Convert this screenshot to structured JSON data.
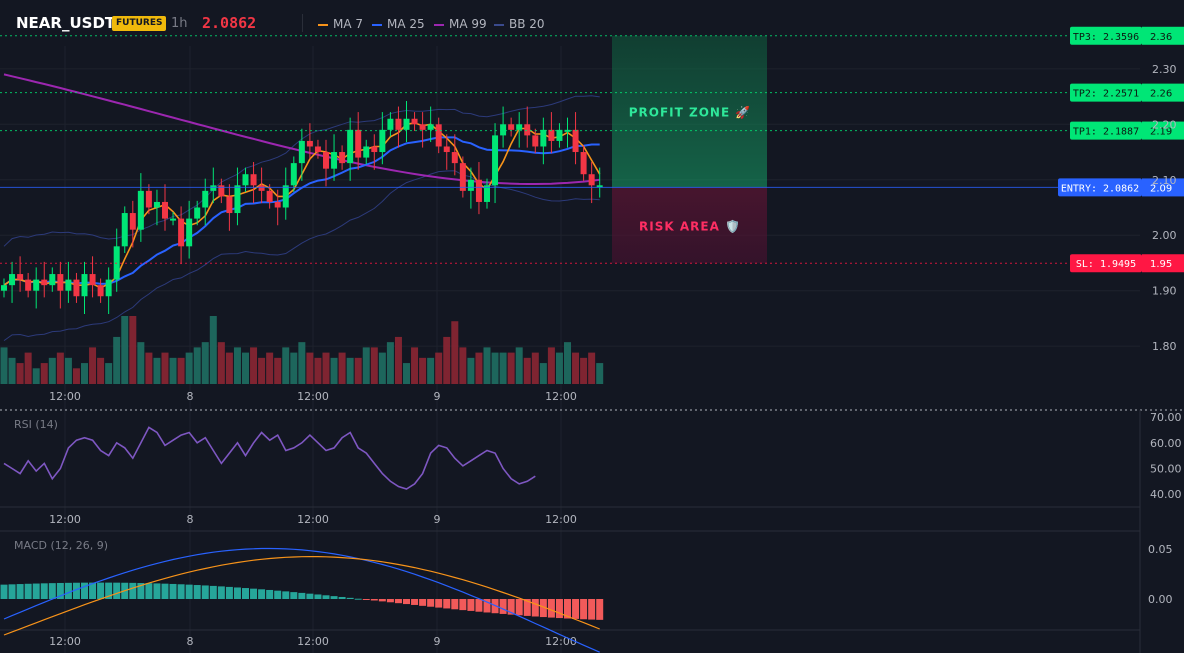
{
  "header": {
    "symbol": "NEAR_USDT",
    "badge": "FUTURES",
    "timeframe": "1h",
    "last_price": "2.0862",
    "legend": [
      {
        "label": "MA 7",
        "color": "#f7931a"
      },
      {
        "label": "MA 25",
        "color": "#2962ff"
      },
      {
        "label": "MA 99",
        "color": "#9c27b0"
      },
      {
        "label": "BB 20",
        "color": "#3a4a8c"
      }
    ]
  },
  "colors": {
    "up": "#26a69a",
    "up_bright": "#00e676",
    "down": "#f23645",
    "entry": "#2962ff",
    "tp": "#00e676",
    "sl": "#ff1744"
  },
  "levels": {
    "tp3": {
      "label": "TP3: 2.3596",
      "axis": "2.36",
      "value": 2.3596
    },
    "tp2": {
      "label": "TP2: 2.2571",
      "axis": "2.26",
      "value": 2.2571
    },
    "tp1": {
      "label": "TP1: 2.1887",
      "axis": "2.19",
      "value": 2.1887
    },
    "entry": {
      "label": "ENTRY: 2.0862",
      "axis": "2.09",
      "value": 2.0862
    },
    "sl": {
      "label": "SL: 1.9495",
      "axis": "1.95",
      "value": 1.9495
    }
  },
  "zones": {
    "profit": "PROFIT ZONE 🚀",
    "risk": "RISK AREA 🛡️"
  },
  "x_ticks": [
    "12:00",
    "8",
    "12:00",
    "9",
    "12:00"
  ],
  "price_axis": [
    "2.30",
    "2.20",
    "2.10",
    "2.00",
    "1.90",
    "1.80"
  ],
  "rsi": {
    "title": "RSI (14)",
    "axis": [
      "70.00",
      "60.00",
      "50.00",
      "40.00"
    ],
    "ylim": [
      35,
      72
    ]
  },
  "macd": {
    "title": "MACD (12, 26, 9)",
    "axis": [
      "0.05",
      "0.00"
    ],
    "ylim": [
      -0.035,
      0.065
    ]
  },
  "chart_data": {
    "type": "candlestick",
    "ylim": [
      1.73,
      2.37
    ],
    "close": [
      1.91,
      1.93,
      1.92,
      1.9,
      1.92,
      1.91,
      1.93,
      1.9,
      1.92,
      1.89,
      1.93,
      1.91,
      1.89,
      1.92,
      1.98,
      2.04,
      2.01,
      2.08,
      2.05,
      2.06,
      2.03,
      2.03,
      1.98,
      2.03,
      2.05,
      2.08,
      2.09,
      2.07,
      2.04,
      2.09,
      2.11,
      2.09,
      2.08,
      2.06,
      2.05,
      2.09,
      2.13,
      2.17,
      2.16,
      2.15,
      2.12,
      2.15,
      2.13,
      2.19,
      2.14,
      2.16,
      2.15,
      2.19,
      2.21,
      2.19,
      2.21,
      2.2,
      2.19,
      2.2,
      2.16,
      2.15,
      2.13,
      2.08,
      2.1,
      2.06,
      2.09,
      2.18,
      2.2,
      2.19,
      2.2,
      2.18,
      2.16,
      2.19,
      2.17,
      2.19,
      2.19,
      2.15,
      2.11,
      2.09,
      2.09
    ],
    "volume": [
      7,
      5,
      4,
      6,
      3,
      4,
      5,
      6,
      5,
      3,
      4,
      7,
      5,
      4,
      9,
      13,
      13,
      8,
      6,
      5,
      6,
      5,
      5,
      6,
      7,
      8,
      13,
      8,
      6,
      7,
      6,
      7,
      5,
      6,
      5,
      7,
      6,
      8,
      6,
      5,
      6,
      5,
      6,
      5,
      5,
      7,
      7,
      6,
      8,
      9,
      4,
      7,
      5,
      5,
      6,
      9,
      12,
      7,
      5,
      6,
      7,
      6,
      6,
      6,
      7,
      5,
      6,
      4,
      7,
      6,
      8,
      6,
      5,
      6,
      4
    ]
  }
}
